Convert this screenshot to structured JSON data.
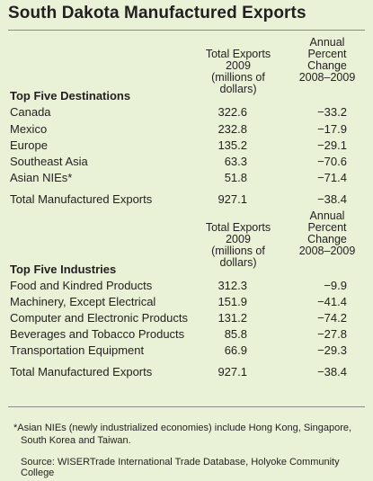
{
  "title": "South Dakota Manufactured Exports",
  "col_headers": {
    "total": [
      "Total Exports",
      "2009",
      "(millions of dollars)"
    ],
    "annual": [
      "Annual",
      "Percent",
      "Change",
      "2008–2009"
    ]
  },
  "destinations": {
    "heading": "Top Five Destinations",
    "rows": [
      {
        "label": "Canada",
        "total": "322.6",
        "change": "−33.2"
      },
      {
        "label": "Mexico",
        "total": "232.8",
        "change": "−17.9"
      },
      {
        "label": "Europe",
        "total": "135.2",
        "change": "−29.1"
      },
      {
        "label": "Southeast Asia",
        "total": "63.3",
        "change": "−70.6"
      },
      {
        "label": "Asian NIEs*",
        "total": "51.8",
        "change": "−71.4"
      }
    ],
    "total_row": {
      "label": "Total Manufactured Exports",
      "total": "927.1",
      "change": "−38.4"
    }
  },
  "industries": {
    "heading": "Top Five Industries",
    "rows": [
      {
        "label": "Food and Kindred Products",
        "total": "312.3",
        "change": "−9.9"
      },
      {
        "label": "Machinery, Except Electrical",
        "total": "151.9",
        "change": "−41.4"
      },
      {
        "label": "Computer and Electronic Products",
        "total": "131.2",
        "change": "−74.2"
      },
      {
        "label": "Beverages and Tobacco Products",
        "total": "85.8",
        "change": "−27.8"
      },
      {
        "label": "Transportation Equipment",
        "total": "66.9",
        "change": "−29.3"
      }
    ],
    "total_row": {
      "label": "Total Manufactured Exports",
      "total": "927.1",
      "change": "−38.4"
    }
  },
  "footnote": {
    "line1": "*Asian NIEs (newly industrialized economies) include Hong Kong, Singapore,",
    "line2": "South Korea and Taiwan.",
    "source": "Source: WISERTrade International Trade Database, Holyoke Community College"
  },
  "colors": {
    "background": "#e9f1d6",
    "text": "#231f20",
    "rule": "#8a8a8a"
  }
}
